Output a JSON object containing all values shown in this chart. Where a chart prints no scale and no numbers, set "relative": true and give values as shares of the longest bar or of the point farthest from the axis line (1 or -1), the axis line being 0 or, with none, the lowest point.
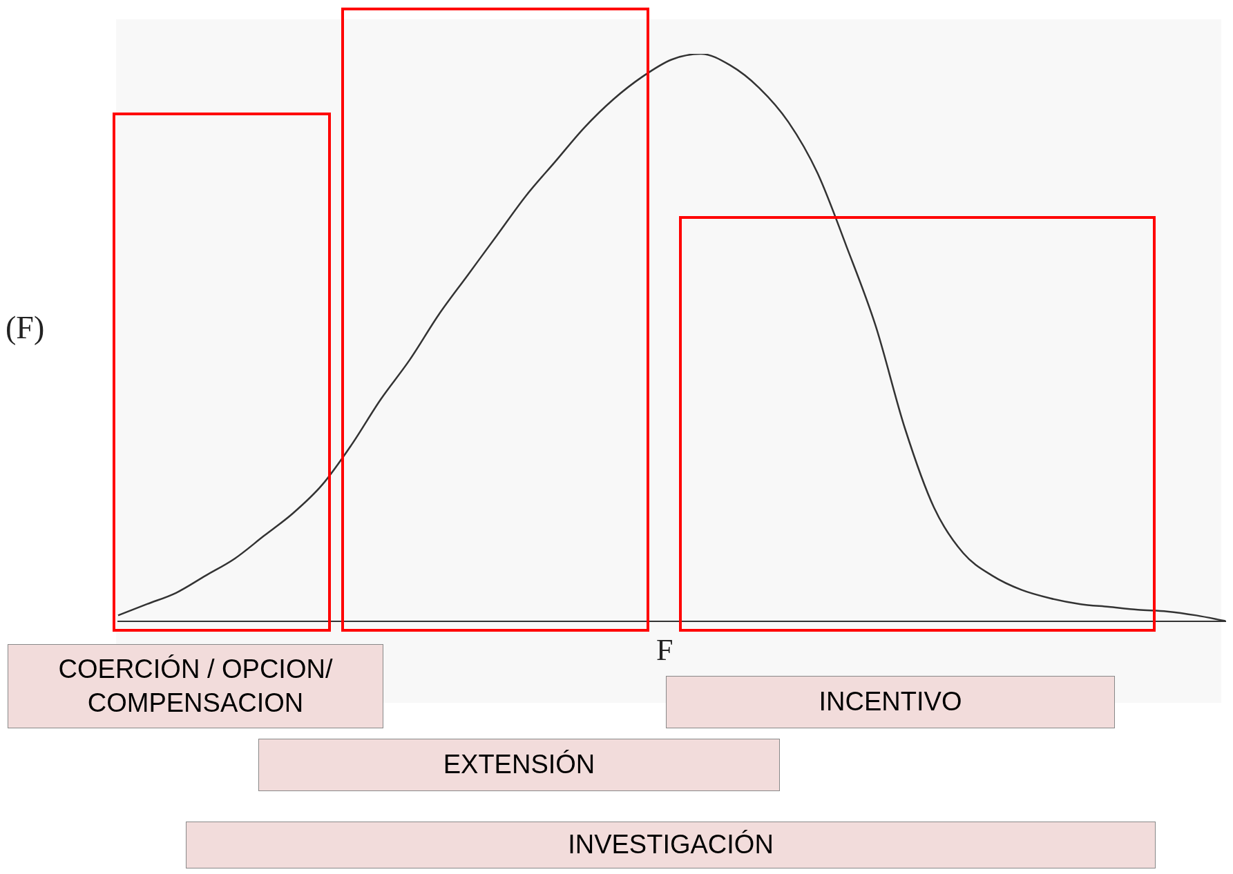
{
  "chart_data": {
    "type": "line",
    "relative": true,
    "xlabel": "F",
    "ylabel": "(F)",
    "color": "#333333",
    "marker": "none",
    "legend": false,
    "grid": false,
    "categories": [
      null,
      null,
      null,
      null,
      null,
      null,
      null,
      null,
      null,
      null,
      null,
      null,
      null,
      null,
      null,
      null,
      null,
      null,
      null,
      null,
      null,
      null,
      null,
      null,
      null,
      null,
      null,
      null,
      null,
      null,
      null,
      null,
      null,
      null,
      null,
      null,
      null,
      null,
      null
    ],
    "values": [
      0.01,
      0.03,
      0.05,
      0.08,
      0.11,
      0.15,
      0.19,
      0.24,
      0.31,
      0.39,
      0.46,
      0.54,
      0.61,
      0.68,
      0.75,
      0.81,
      0.87,
      0.92,
      0.96,
      0.99,
      1.0,
      0.98,
      0.94,
      0.88,
      0.79,
      0.66,
      0.52,
      0.34,
      0.2,
      0.12,
      0.08,
      0.055,
      0.04,
      0.03,
      0.025,
      0.02,
      0.017,
      0.01,
      0
    ],
    "annotations": [
      "COERCIÓN / OPCION/ COMPENSACION",
      "INCENTIVO",
      "EXTENSIÓN",
      "INVESTIGACIÓN"
    ]
  }
}
